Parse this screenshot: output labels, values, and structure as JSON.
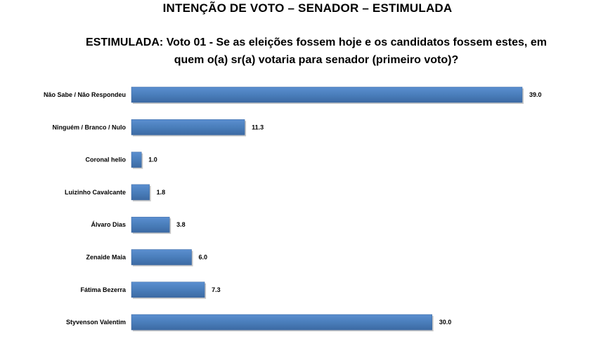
{
  "header": {
    "title": "INTENÇÃO DE VOTO – SENADOR – ESTIMULADA",
    "subtitle": "ESTIMULADA: Voto 01 - Se as eleições fossem hoje e os candidatos fossem estes, em quem o(a) sr(a) votaria para senador (primeiro voto)?"
  },
  "chart_data": {
    "type": "bar",
    "orientation": "horizontal",
    "title": "",
    "xlabel": "",
    "ylabel": "",
    "categories": [
      "Não Sabe / Não Respondeu",
      "Ninguém / Branco / Nulo",
      "Coronal helio",
      "Luizinho Cavalcante",
      "Álvaro Dias",
      "Zenaide Maia",
      "Fátima Bezerra",
      "Styvenson Valentim"
    ],
    "values": [
      39.0,
      11.3,
      1.0,
      1.8,
      3.8,
      6.0,
      7.3,
      30.0
    ],
    "value_labels": [
      "39.0",
      "11.3",
      "1.0",
      "1.8",
      "3.8",
      "6.0",
      "7.3",
      "30.0"
    ],
    "xlim": [
      0,
      39.0
    ],
    "grid": false,
    "bar_color": "#4a7ebb",
    "bar_shadow_color": "#9a9a9a"
  }
}
